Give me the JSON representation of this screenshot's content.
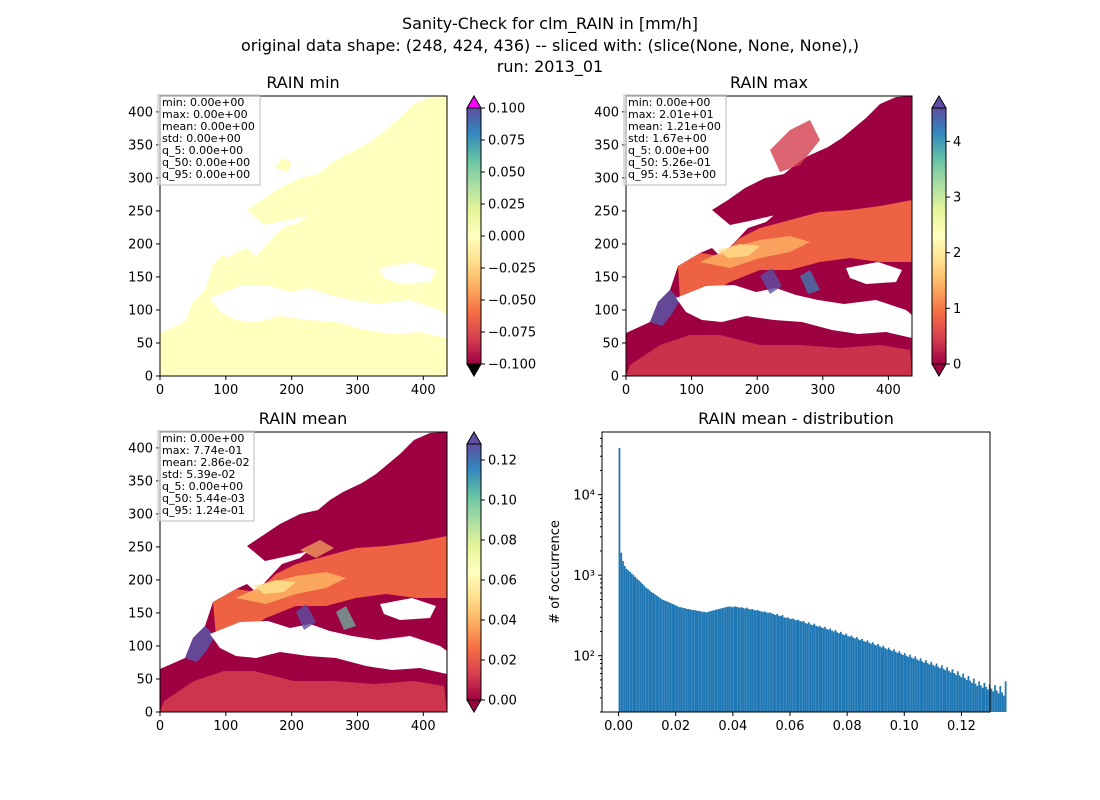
{
  "figure": {
    "suptitle": [
      "Sanity-Check for clm_RAIN in [mm/h]",
      "original data shape: (248, 424, 436) -- sliced with: (slice(None, None, None),)",
      "run: 2013_01"
    ]
  },
  "panels": [
    {
      "title": "RAIN min",
      "x_ticks": [
        "0",
        "100",
        "200",
        "300",
        "400"
      ],
      "y_ticks": [
        "0",
        "50",
        "100",
        "150",
        "200",
        "250",
        "300",
        "350",
        "400"
      ],
      "stats": [
        "min: 0.00e+00",
        "max: 0.00e+00",
        "mean: 0.00e+00",
        "std: 0.00e+00",
        "q_5: 0.00e+00",
        "q_50: 0.00e+00",
        "q_95: 0.00e+00"
      ],
      "colorbar": {
        "ticks": [
          "0.100",
          "0.075",
          "0.050",
          "0.025",
          "0.000",
          "−0.025",
          "−0.050",
          "−0.075",
          "−0.100"
        ],
        "tick_values": [
          0.1,
          0.075,
          0.05,
          0.025,
          0,
          -0.025,
          -0.05,
          -0.075,
          -0.1
        ],
        "range": [
          -0.1,
          0.1
        ],
        "extend_top_color": "#ff00ff",
        "extend_bottom_color": "#000000"
      },
      "field_color": "#ffffbe"
    },
    {
      "title": "RAIN max",
      "x_ticks": [
        "0",
        "100",
        "200",
        "300",
        "400"
      ],
      "y_ticks": [
        "0",
        "50",
        "100",
        "150",
        "200",
        "250",
        "300",
        "350",
        "400"
      ],
      "stats": [
        "min: 0.00e+00",
        "max: 2.01e+01",
        "mean: 1.21e+00",
        "std: 1.67e+00",
        "q_5: 0.00e+00",
        "q_50: 5.26e-01",
        "q_95: 4.53e+00"
      ],
      "colorbar": {
        "ticks": [
          "4",
          "3",
          "2",
          "1",
          "0"
        ],
        "tick_values": [
          4,
          3,
          2,
          1,
          0
        ],
        "range": [
          0,
          4.6
        ]
      }
    },
    {
      "title": "RAIN mean",
      "x_ticks": [
        "0",
        "100",
        "200",
        "300",
        "400"
      ],
      "y_ticks": [
        "0",
        "50",
        "100",
        "150",
        "200",
        "250",
        "300",
        "350",
        "400"
      ],
      "stats": [
        "min: 0.00e+00",
        "max: 7.74e-01",
        "mean: 2.86e-02",
        "std: 5.39e-02",
        "q_5: 0.00e+00",
        "q_50: 5.44e-03",
        "q_95: 1.24e-01"
      ],
      "colorbar": {
        "ticks": [
          "0.12",
          "0.10",
          "0.08",
          "0.06",
          "0.04",
          "0.02",
          "0.00"
        ],
        "tick_values": [
          0.12,
          0.1,
          0.08,
          0.06,
          0.04,
          0.02,
          0.0
        ],
        "range": [
          0,
          0.128
        ]
      }
    },
    {
      "title": "RAIN mean - distribution",
      "ylabel": "# of occurrence",
      "x_ticks": [
        "0.00",
        "0.02",
        "0.04",
        "0.06",
        "0.08",
        "0.10",
        "0.12"
      ],
      "y_ticks": [
        "10²",
        "10³",
        "10⁴"
      ]
    }
  ],
  "colormap": [
    "#9e0142",
    "#d53e4f",
    "#f46d43",
    "#fdae61",
    "#fee08b",
    "#ffffbf",
    "#e6f598",
    "#abdda4",
    "#66c2a5",
    "#3288bd",
    "#5e4fa2"
  ],
  "chart_data": [
    {
      "type": "heatmap",
      "title": "RAIN min",
      "xlim": [
        0,
        436
      ],
      "ylim": [
        0,
        424
      ],
      "colorbar_range": [
        -0.1,
        0.1
      ],
      "stats": {
        "min": 0.0,
        "max": 0.0,
        "mean": 0.0,
        "std": 0.0,
        "q_5": 0.0,
        "q_50": 0.0,
        "q_95": 0.0
      }
    },
    {
      "type": "heatmap",
      "title": "RAIN max",
      "xlim": [
        0,
        436
      ],
      "ylim": [
        0,
        424
      ],
      "colorbar_range": [
        0,
        4.6
      ],
      "stats": {
        "min": 0.0,
        "max": 20.1,
        "mean": 1.21,
        "std": 1.67,
        "q_5": 0.0,
        "q_50": 0.526,
        "q_95": 4.53
      }
    },
    {
      "type": "heatmap",
      "title": "RAIN mean",
      "xlim": [
        0,
        436
      ],
      "ylim": [
        0,
        424
      ],
      "colorbar_range": [
        0,
        0.128
      ],
      "stats": {
        "min": 0.0,
        "max": 0.774,
        "mean": 0.0286,
        "std": 0.0539,
        "q_5": 0.0,
        "q_50": 0.00544,
        "q_95": 0.124
      }
    },
    {
      "type": "bar",
      "title": "RAIN mean - distribution",
      "ylabel": "# of occurrence",
      "y_scale": "log",
      "xlim": [
        -0.0058,
        0.13
      ],
      "ylim": [
        20,
        60000
      ],
      "bin_width": 0.00062,
      "color": "#1f77b4",
      "bins": {
        "x_start": 0.0,
        "counts": [
          38000,
          1900,
          1500,
          1300,
          1200,
          1150,
          1100,
          1050,
          1000,
          950,
          900,
          860,
          820,
          780,
          740,
          700,
          680,
          650,
          620,
          600,
          580,
          560,
          540,
          520,
          500,
          490,
          480,
          470,
          460,
          450,
          440,
          430,
          420,
          410,
          400,
          400,
          390,
          390,
          380,
          380,
          375,
          370,
          370,
          365,
          360,
          360,
          355,
          350,
          350,
          345,
          350,
          355,
          360,
          365,
          370,
          375,
          380,
          385,
          390,
          395,
          400,
          405,
          410,
          405,
          400,
          410,
          405,
          400,
          395,
          400,
          390,
          385,
          395,
          380,
          375,
          380,
          370,
          365,
          370,
          360,
          355,
          350,
          355,
          345,
          340,
          345,
          335,
          330,
          320,
          330,
          315,
          310,
          320,
          300,
          295,
          300,
          290,
          285,
          290,
          280,
          275,
          280,
          270,
          265,
          270,
          255,
          250,
          260,
          245,
          240,
          250,
          235,
          230,
          235,
          225,
          220,
          228,
          215,
          210,
          218,
          205,
          200,
          208,
          195,
          190,
          198,
          185,
          180,
          188,
          176,
          172,
          178,
          168,
          164,
          170,
          160,
          156,
          162,
          152,
          148,
          155,
          145,
          141,
          147,
          138,
          134,
          140,
          131,
          127,
          133,
          124,
          120,
          126,
          118,
          114,
          120,
          112,
          108,
          114,
          106,
          102,
          108,
          100,
          97,
          103,
          95,
          92,
          98,
          90,
          87,
          93,
          85,
          82,
          88,
          81,
          78,
          84,
          77,
          74,
          80,
          73,
          70,
          76,
          69,
          66,
          72,
          65,
          62,
          68,
          61,
          58,
          64,
          57,
          54,
          60,
          53,
          50,
          56,
          49,
          46,
          52,
          45,
          42,
          48,
          43,
          40,
          46,
          41,
          38,
          44,
          39,
          36,
          43,
          37,
          34,
          42,
          35,
          32,
          48
        ]
      }
    }
  ]
}
